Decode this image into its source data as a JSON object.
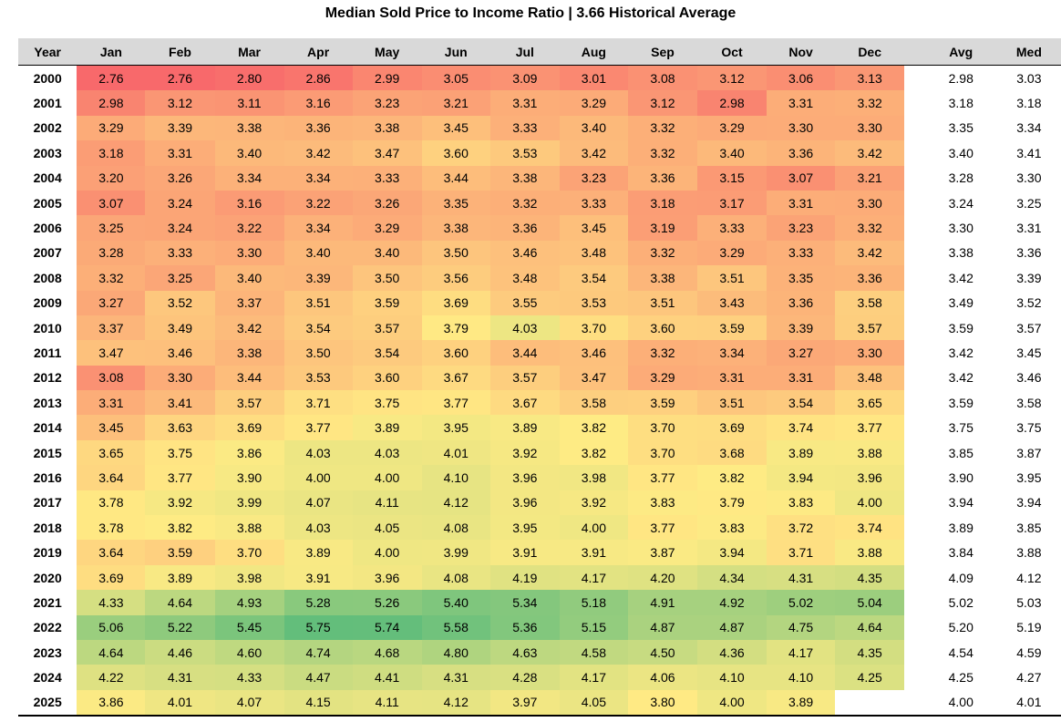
{
  "chart_data": {
    "type": "heatmap",
    "title": "Median Sold Price to Income Ratio | 3.66 Historical Average",
    "corner_label": "Year",
    "months": [
      "Jan",
      "Feb",
      "Mar",
      "Apr",
      "May",
      "Jun",
      "Jul",
      "Aug",
      "Sep",
      "Oct",
      "Nov",
      "Dec"
    ],
    "summary_columns": [
      "Avg",
      "Med"
    ],
    "color_scale": {
      "low": "#f8696b",
      "mid": "#ffeb84",
      "high": "#63be7b"
    },
    "rows": [
      {
        "year": "2000",
        "values": [
          "2.76",
          "2.76",
          "2.80",
          "2.86",
          "2.99",
          "3.05",
          "3.09",
          "3.01",
          "3.08",
          "3.12",
          "3.06",
          "3.13"
        ],
        "avg": "2.98",
        "med": "3.03"
      },
      {
        "year": "2001",
        "values": [
          "2.98",
          "3.12",
          "3.11",
          "3.16",
          "3.23",
          "3.21",
          "3.31",
          "3.29",
          "3.12",
          "2.98",
          "3.31",
          "3.32"
        ],
        "avg": "3.18",
        "med": "3.18"
      },
      {
        "year": "2002",
        "values": [
          "3.29",
          "3.39",
          "3.38",
          "3.36",
          "3.38",
          "3.45",
          "3.33",
          "3.40",
          "3.32",
          "3.29",
          "3.30",
          "3.30"
        ],
        "avg": "3.35",
        "med": "3.34"
      },
      {
        "year": "2003",
        "values": [
          "3.18",
          "3.31",
          "3.40",
          "3.42",
          "3.47",
          "3.60",
          "3.53",
          "3.42",
          "3.32",
          "3.40",
          "3.36",
          "3.42"
        ],
        "avg": "3.40",
        "med": "3.41"
      },
      {
        "year": "2004",
        "values": [
          "3.20",
          "3.26",
          "3.34",
          "3.34",
          "3.33",
          "3.44",
          "3.38",
          "3.23",
          "3.36",
          "3.15",
          "3.07",
          "3.21"
        ],
        "avg": "3.28",
        "med": "3.30"
      },
      {
        "year": "2005",
        "values": [
          "3.07",
          "3.24",
          "3.16",
          "3.22",
          "3.26",
          "3.35",
          "3.32",
          "3.33",
          "3.18",
          "3.17",
          "3.31",
          "3.30"
        ],
        "avg": "3.24",
        "med": "3.25"
      },
      {
        "year": "2006",
        "values": [
          "3.25",
          "3.24",
          "3.22",
          "3.34",
          "3.29",
          "3.38",
          "3.36",
          "3.45",
          "3.19",
          "3.33",
          "3.23",
          "3.32"
        ],
        "avg": "3.30",
        "med": "3.31"
      },
      {
        "year": "2007",
        "values": [
          "3.28",
          "3.33",
          "3.30",
          "3.40",
          "3.40",
          "3.50",
          "3.46",
          "3.48",
          "3.32",
          "3.29",
          "3.33",
          "3.42"
        ],
        "avg": "3.38",
        "med": "3.36"
      },
      {
        "year": "2008",
        "values": [
          "3.32",
          "3.25",
          "3.40",
          "3.39",
          "3.50",
          "3.56",
          "3.48",
          "3.54",
          "3.38",
          "3.51",
          "3.35",
          "3.36"
        ],
        "avg": "3.42",
        "med": "3.39"
      },
      {
        "year": "2009",
        "values": [
          "3.27",
          "3.52",
          "3.37",
          "3.51",
          "3.59",
          "3.69",
          "3.55",
          "3.53",
          "3.51",
          "3.43",
          "3.36",
          "3.58"
        ],
        "avg": "3.49",
        "med": "3.52"
      },
      {
        "year": "2010",
        "values": [
          "3.37",
          "3.49",
          "3.42",
          "3.54",
          "3.57",
          "3.79",
          "4.03",
          "3.70",
          "3.60",
          "3.59",
          "3.39",
          "3.57"
        ],
        "avg": "3.59",
        "med": "3.57"
      },
      {
        "year": "2011",
        "values": [
          "3.47",
          "3.46",
          "3.38",
          "3.50",
          "3.54",
          "3.60",
          "3.44",
          "3.46",
          "3.32",
          "3.34",
          "3.27",
          "3.30"
        ],
        "avg": "3.42",
        "med": "3.45"
      },
      {
        "year": "2012",
        "values": [
          "3.08",
          "3.30",
          "3.44",
          "3.53",
          "3.60",
          "3.67",
          "3.57",
          "3.47",
          "3.29",
          "3.31",
          "3.31",
          "3.48"
        ],
        "avg": "3.42",
        "med": "3.46"
      },
      {
        "year": "2013",
        "values": [
          "3.31",
          "3.41",
          "3.57",
          "3.71",
          "3.75",
          "3.77",
          "3.67",
          "3.58",
          "3.59",
          "3.51",
          "3.54",
          "3.65"
        ],
        "avg": "3.59",
        "med": "3.58"
      },
      {
        "year": "2014",
        "values": [
          "3.45",
          "3.63",
          "3.69",
          "3.77",
          "3.89",
          "3.95",
          "3.89",
          "3.82",
          "3.70",
          "3.69",
          "3.74",
          "3.77"
        ],
        "avg": "3.75",
        "med": "3.75"
      },
      {
        "year": "2015",
        "values": [
          "3.65",
          "3.75",
          "3.86",
          "4.03",
          "4.03",
          "4.01",
          "3.92",
          "3.82",
          "3.70",
          "3.68",
          "3.89",
          "3.88"
        ],
        "avg": "3.85",
        "med": "3.87"
      },
      {
        "year": "2016",
        "values": [
          "3.64",
          "3.77",
          "3.90",
          "4.00",
          "4.00",
          "4.10",
          "3.96",
          "3.98",
          "3.77",
          "3.82",
          "3.94",
          "3.96"
        ],
        "avg": "3.90",
        "med": "3.95"
      },
      {
        "year": "2017",
        "values": [
          "3.78",
          "3.92",
          "3.99",
          "4.07",
          "4.11",
          "4.12",
          "3.96",
          "3.92",
          "3.83",
          "3.79",
          "3.83",
          "4.00"
        ],
        "avg": "3.94",
        "med": "3.94"
      },
      {
        "year": "2018",
        "values": [
          "3.78",
          "3.82",
          "3.88",
          "4.03",
          "4.05",
          "4.08",
          "3.95",
          "4.00",
          "3.77",
          "3.83",
          "3.72",
          "3.74"
        ],
        "avg": "3.89",
        "med": "3.85"
      },
      {
        "year": "2019",
        "values": [
          "3.64",
          "3.59",
          "3.70",
          "3.89",
          "4.00",
          "3.99",
          "3.91",
          "3.91",
          "3.87",
          "3.94",
          "3.71",
          "3.88"
        ],
        "avg": "3.84",
        "med": "3.88"
      },
      {
        "year": "2020",
        "values": [
          "3.69",
          "3.89",
          "3.98",
          "3.91",
          "3.96",
          "4.08",
          "4.19",
          "4.17",
          "4.20",
          "4.34",
          "4.31",
          "4.35"
        ],
        "avg": "4.09",
        "med": "4.12"
      },
      {
        "year": "2021",
        "values": [
          "4.33",
          "4.64",
          "4.93",
          "5.28",
          "5.26",
          "5.40",
          "5.34",
          "5.18",
          "4.91",
          "4.92",
          "5.02",
          "5.04"
        ],
        "avg": "5.02",
        "med": "5.03"
      },
      {
        "year": "2022",
        "values": [
          "5.06",
          "5.22",
          "5.45",
          "5.75",
          "5.74",
          "5.58",
          "5.36",
          "5.15",
          "4.87",
          "4.87",
          "4.75",
          "4.64"
        ],
        "avg": "5.20",
        "med": "5.19"
      },
      {
        "year": "2023",
        "values": [
          "4.64",
          "4.46",
          "4.60",
          "4.74",
          "4.68",
          "4.80",
          "4.63",
          "4.58",
          "4.50",
          "4.36",
          "4.17",
          "4.35"
        ],
        "avg": "4.54",
        "med": "4.59"
      },
      {
        "year": "2024",
        "values": [
          "4.22",
          "4.31",
          "4.33",
          "4.47",
          "4.41",
          "4.31",
          "4.28",
          "4.17",
          "4.06",
          "4.10",
          "4.10",
          "4.25"
        ],
        "avg": "4.25",
        "med": "4.27"
      },
      {
        "year": "2025",
        "values": [
          "3.86",
          "4.01",
          "4.07",
          "4.15",
          "4.11",
          "4.12",
          "3.97",
          "4.05",
          "3.80",
          "4.00",
          "3.89",
          ""
        ],
        "avg": "4.00",
        "med": "4.01"
      }
    ]
  }
}
